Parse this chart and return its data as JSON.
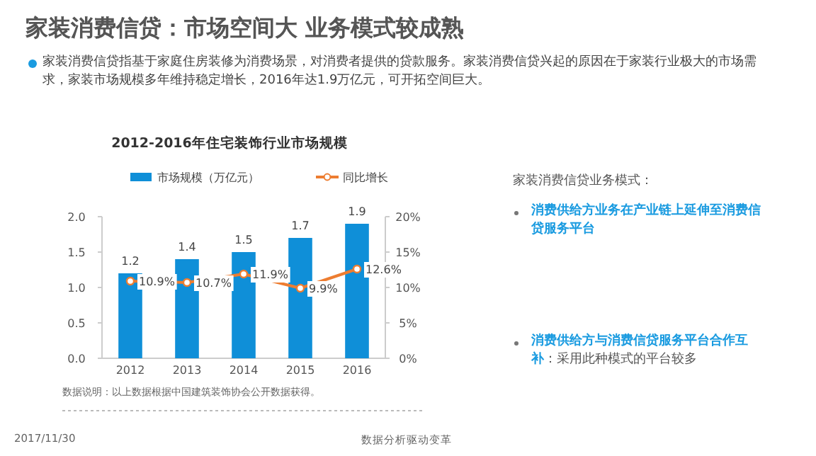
{
  "chart_data": {
    "type": "bar",
    "title": "2012-2016年住宅装饰行业市场规模",
    "categories": [
      "2012",
      "2013",
      "2014",
      "2015",
      "2016"
    ],
    "series": [
      {
        "name": "市场规模（万亿元）",
        "color": "#0f8fd8",
        "values": [
          1.2,
          1.4,
          1.5,
          1.7,
          1.9
        ],
        "value_labels": [
          "1.2",
          "1.4",
          "1.5",
          "1.7",
          "1.9"
        ]
      },
      {
        "name": "同比增长",
        "type": "line",
        "axis": "y2",
        "color": "#ed7d31",
        "marker": "circle",
        "values": [
          10.9,
          10.7,
          11.9,
          9.9,
          12.6
        ],
        "value_labels": [
          "10.9%",
          "10.7%",
          "11.9%",
          "9.9%",
          "12.6%"
        ]
      }
    ],
    "ylim": [
      0,
      2
    ],
    "yticks": [
      {
        "value": 0,
        "label": "0.0"
      },
      0.5,
      {
        "value": 1,
        "label": "1.0"
      },
      1.5,
      {
        "value": 2,
        "label": "2.0"
      }
    ],
    "y2lim": [
      0,
      20
    ],
    "y2ticks": [
      {
        "value": 0,
        "label": "0%"
      },
      {
        "value": 5,
        "label": "5%"
      },
      {
        "value": 10,
        "label": "10%"
      },
      {
        "value": 15,
        "label": "15%"
      },
      {
        "value": 20,
        "label": "20%"
      }
    ],
    "legend": "top",
    "grid": false,
    "annotations": [
      "家装消费信贷：市场空间大  业务模式较成熟",
      "家装消费信贷指基于家庭住房装修为消费场景，对消费者提供的贷款服务。家装消费信贷兴起的原因在于家装行业极大的市场需求，家装市场规模多年维持稳定增长，2016年达1.9万亿元，可开拓空间巨大。",
      "数据说明：以上数据根据中国建筑装饰协会公开数据获得。",
      "2017/11/30",
      "数据分析驱动变革",
      "家装消费信贷业务模式：",
      "消费供给方业务在产业链上延伸至消费信贷服务平台",
      "消费供给方与消费信贷服务平台合作互补",
      "：采用此种模式的平台较多"
    ]
  }
}
